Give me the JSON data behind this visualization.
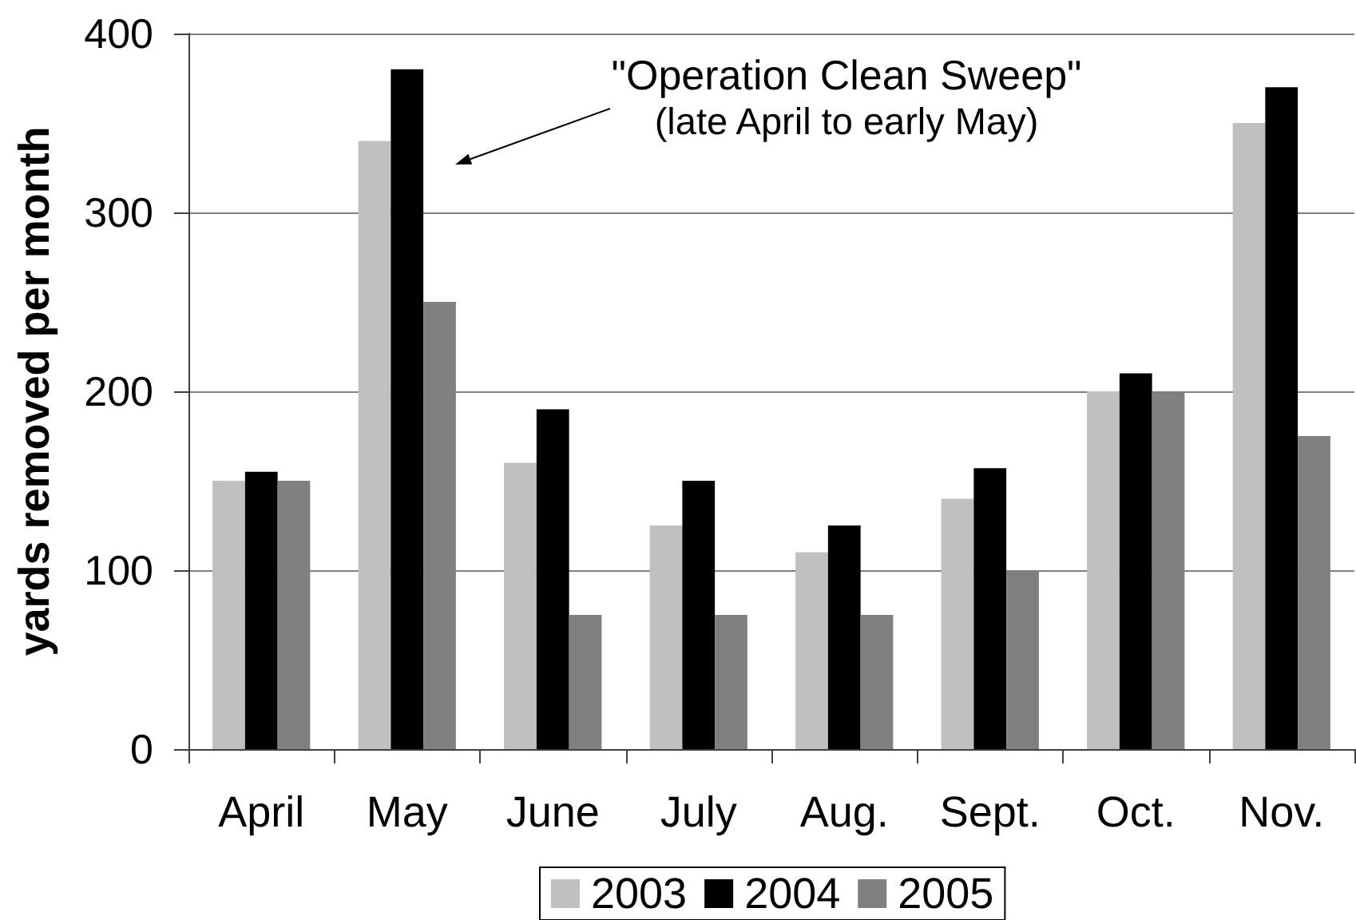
{
  "chart_data": {
    "type": "bar",
    "ylabel": "yards removed per month",
    "categories": [
      "April",
      "May",
      "June",
      "July",
      "Aug.",
      "Sept.",
      "Oct.",
      "Nov."
    ],
    "series": [
      {
        "name": "2003",
        "color": "#c0c0c0",
        "values": [
          150,
          340,
          160,
          125,
          110,
          140,
          200,
          350
        ]
      },
      {
        "name": "2004",
        "color": "#000000",
        "values": [
          155,
          380,
          190,
          150,
          125,
          157,
          210,
          370
        ]
      },
      {
        "name": "2005",
        "color": "#808080",
        "values": [
          150,
          250,
          75,
          75,
          75,
          100,
          200,
          175
        ]
      }
    ],
    "ylim": [
      0,
      400
    ],
    "yticks": [
      0,
      100,
      200,
      300,
      400
    ],
    "grid": "y",
    "legend": "bottom",
    "annotations": [
      "\"Operation Clean Sweep\"\n(late April to early May)"
    ]
  }
}
